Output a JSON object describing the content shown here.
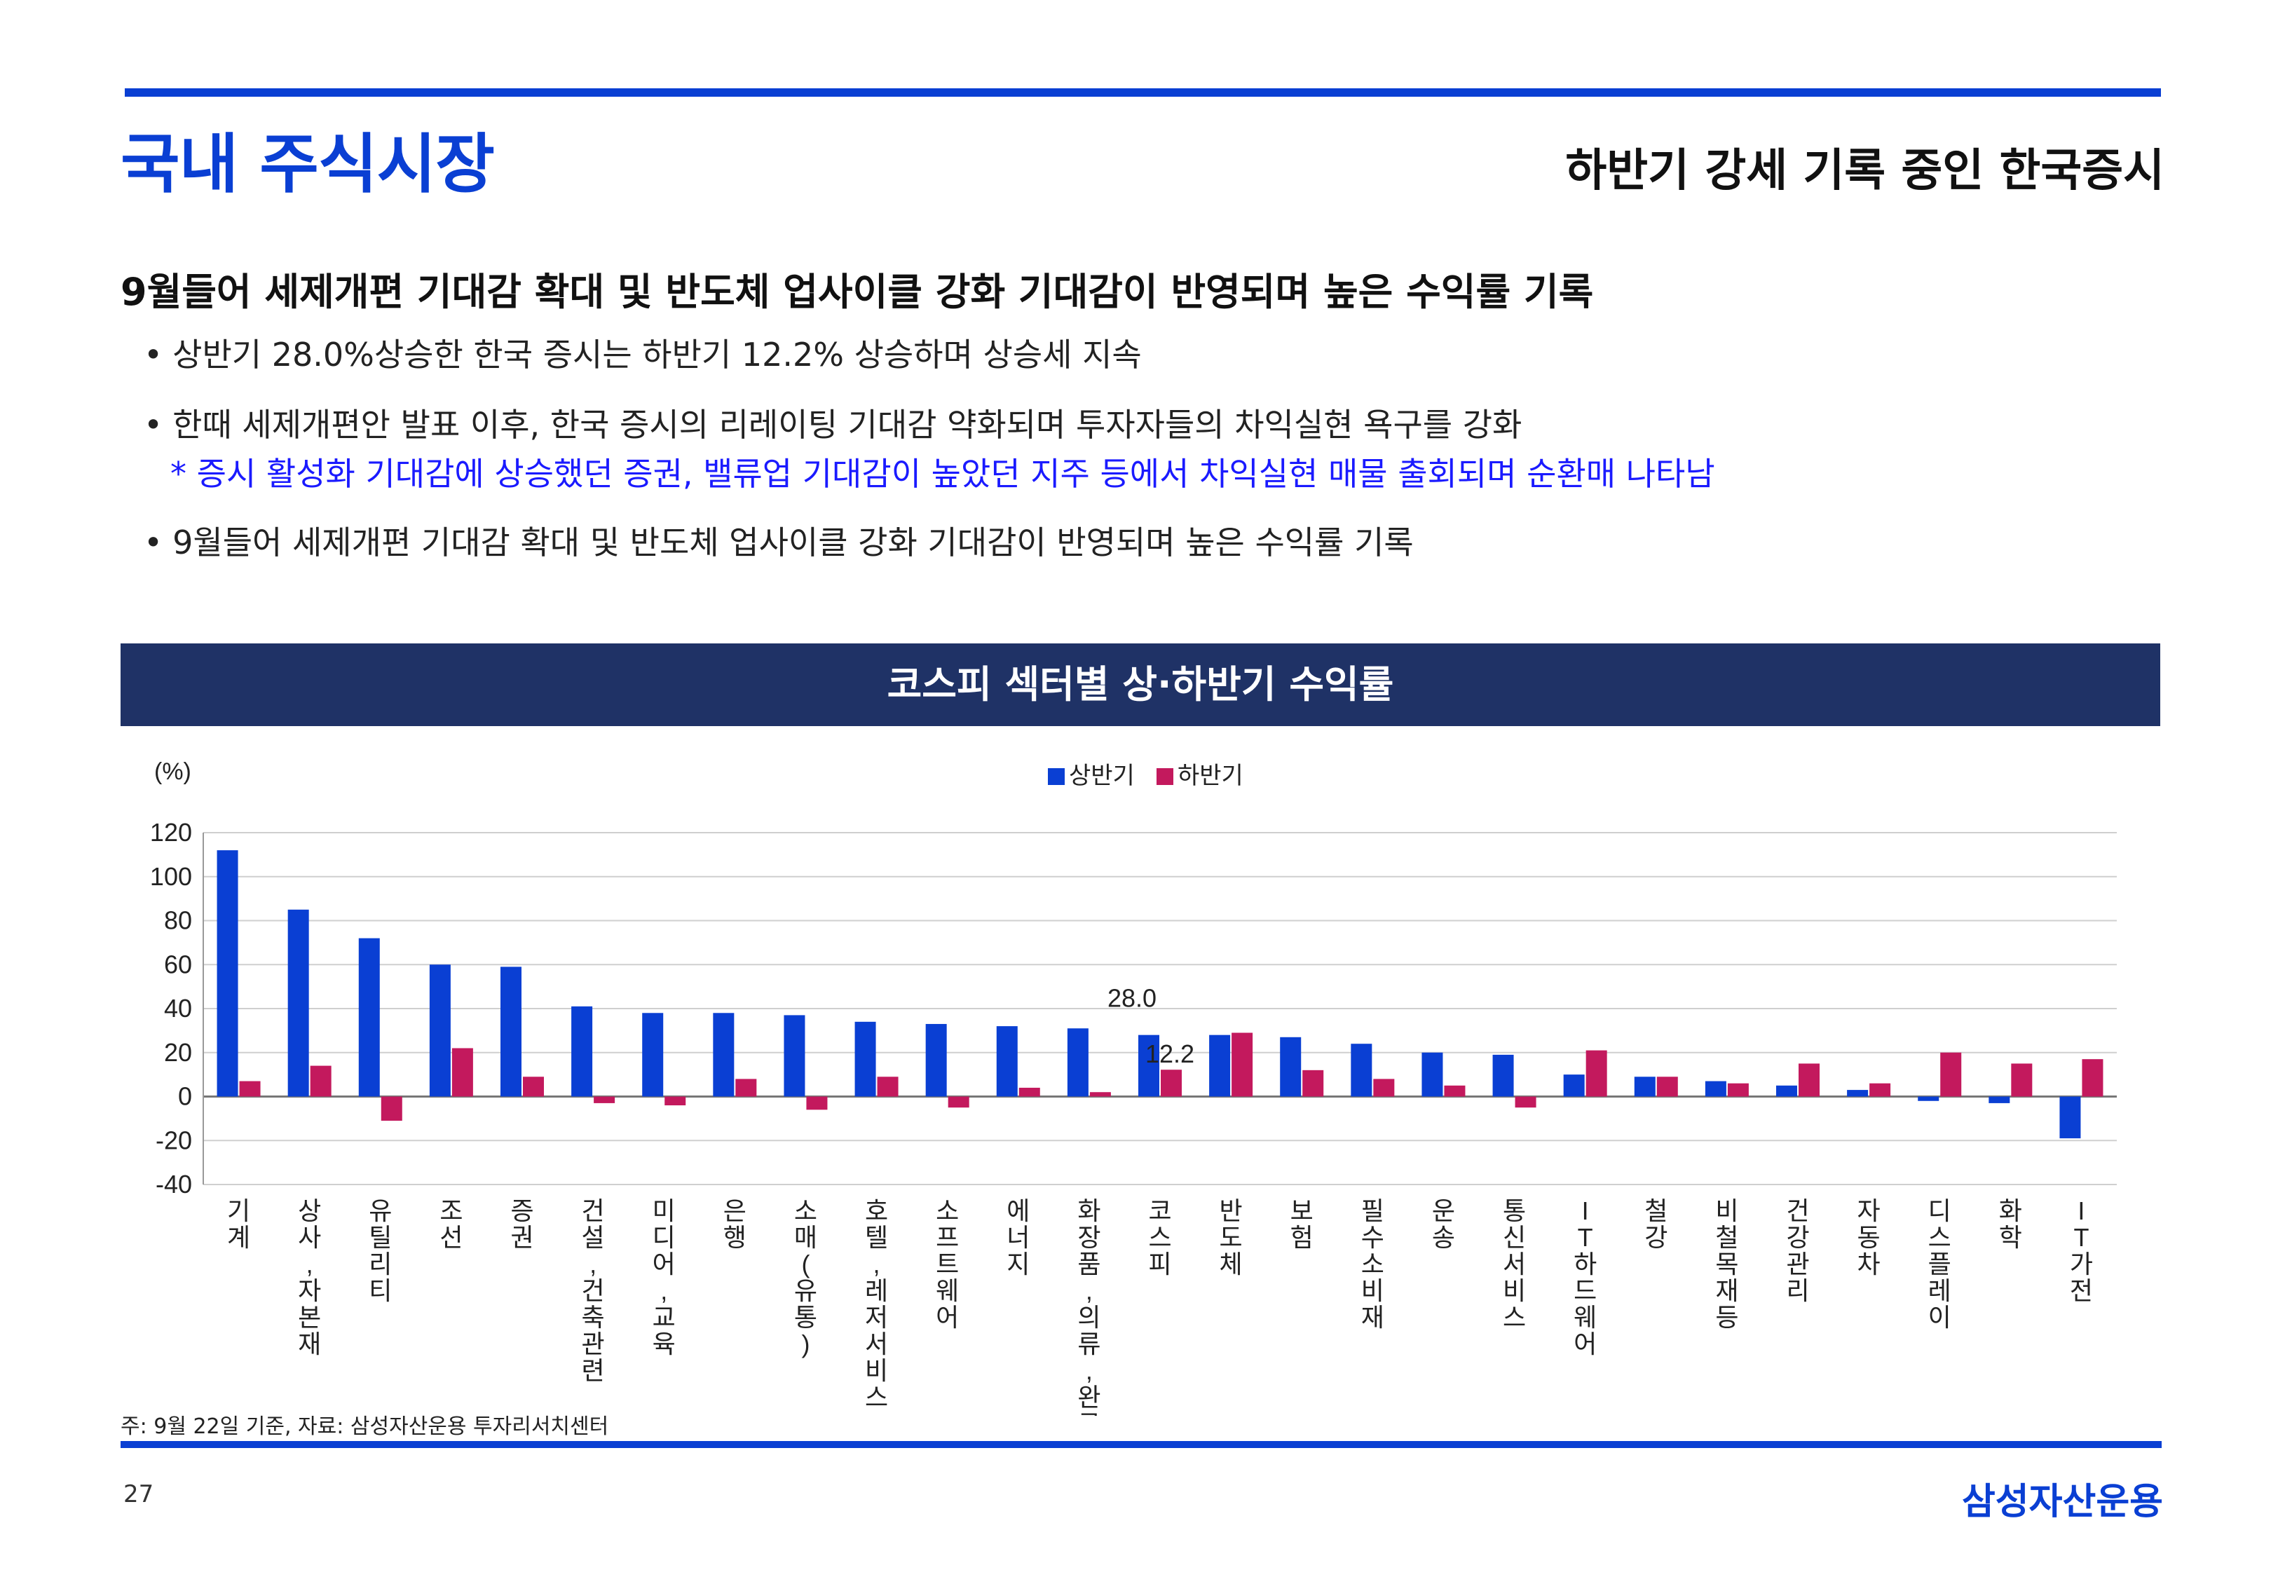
{
  "header": {
    "title": "국내 주식시장",
    "subtitle": "하반기 강세 기록 중인 한국증시"
  },
  "body": {
    "headline": "9월들어 세제개편 기대감 확대 및 반도체 업사이클 강화 기대감이 반영되며 높은 수익률 기록",
    "bullet_char": "•",
    "bullets": [
      "상반기 28.0%상승한 한국 증시는 하반기 12.2% 상승하며 상승세 지속",
      "한때 세제개편안 발표 이후, 한국 증시의 리레이팅 기대감 약화되며 투자자들의 차익실현 욕구를 강화",
      "9월들어 세제개편 기대감 확대 및 반도체 업사이클 강화 기대감이 반영되며 높은 수익률 기록"
    ],
    "note": "* 증시 활성화 기대감에 상승했던 증권, 밸류업 기대감이 높았던 지주 등에서 차익실현 매물 출회되며 순환매 나타남"
  },
  "chart_banner": "코스피 섹터별 상·하반기 수익률",
  "chart_data": {
    "type": "bar",
    "title": "코스피 섹터별 상·하반기 수익률",
    "ylabel": "(%)",
    "xlabel": "",
    "ylim": [
      -40,
      120
    ],
    "yticks": [
      120,
      100,
      80,
      60,
      40,
      20,
      0,
      -20,
      -40
    ],
    "grid": true,
    "legend_position": "top-center",
    "categories": [
      "기계",
      "상사,자본재",
      "유틸리티",
      "조선",
      "증권",
      "건설,건축관련",
      "미디어,교육",
      "은행",
      "소매(유통)",
      "호텔,레저서비스",
      "소프트웨어",
      "에너지",
      "화장품,의류,완구",
      "코스피",
      "반도체",
      "보험",
      "필수소비재",
      "운송",
      "통신서비스",
      "IT하드웨어",
      "철강",
      "비철목재등",
      "건강관리",
      "자동차",
      "디스플레이",
      "화학",
      "IT가전"
    ],
    "series": [
      {
        "name": "상반기",
        "color": "#0a3fd3",
        "values": [
          112,
          85,
          72,
          60,
          59,
          41,
          38,
          38,
          37,
          34,
          33,
          32,
          31,
          28.0,
          28,
          27,
          24,
          20,
          19,
          10,
          9,
          7,
          5,
          3,
          -2,
          -3,
          -19
        ]
      },
      {
        "name": "하반기",
        "color": "#c3195d",
        "values": [
          7,
          14,
          -11,
          22,
          9,
          -3,
          -4,
          8,
          -6,
          9,
          -5,
          4,
          2,
          12.2,
          29,
          12,
          8,
          5,
          -5,
          21,
          9,
          6,
          15,
          6,
          20,
          15,
          17
        ]
      }
    ],
    "annotations": [
      {
        "category": "코스피",
        "series": "상반기",
        "label": "28.0"
      },
      {
        "category": "코스피",
        "series": "하반기",
        "label": "12.2"
      }
    ]
  },
  "footnote": "주: 9월 22일 기준, 자료: 삼성자산운용 투자리서치센터",
  "footer": {
    "page_number": "27",
    "brand": "삼성자산운용"
  }
}
